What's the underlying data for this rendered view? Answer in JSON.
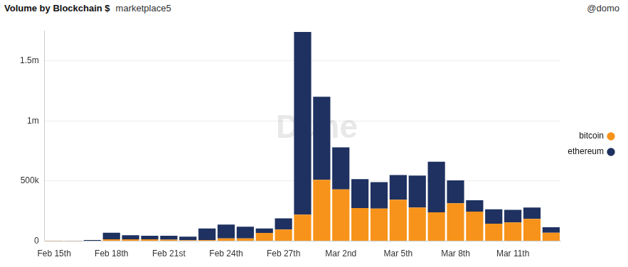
{
  "chart_data": {
    "type": "bar",
    "title": "Volume by Blockchain $",
    "subtitle": "marketplace5",
    "annotations": [
      "@domo",
      "Dune"
    ],
    "categories": [
      "Feb 15th",
      null,
      null,
      "Feb 18th",
      null,
      null,
      "Feb 21st",
      null,
      null,
      "Feb 24th",
      null,
      null,
      "Feb 27th",
      null,
      null,
      "Mar 2nd",
      null,
      null,
      "Mar 5th",
      null,
      null,
      "Mar 8th",
      null,
      null,
      "Mar 11th",
      null,
      null
    ],
    "series": [
      {
        "name": "bitcoin",
        "color": "#f7931a",
        "values": [
          1000,
          2000,
          3000,
          15000,
          15000,
          15000,
          12000,
          8000,
          10000,
          22000,
          22000,
          68000,
          97000,
          220000,
          510000,
          430000,
          275000,
          270000,
          345000,
          280000,
          240000,
          315000,
          245000,
          145000,
          155000,
          185000,
          70000
        ]
      },
      {
        "name": "ethereum",
        "color": "#1e3160",
        "values": [
          1000,
          1000,
          6000,
          55000,
          35000,
          30000,
          33000,
          30000,
          95000,
          116000,
          98000,
          37000,
          93000,
          1520000,
          690000,
          350000,
          240000,
          220000,
          205000,
          265000,
          420000,
          190000,
          95000,
          120000,
          105000,
          95000,
          45000
        ]
      }
    ],
    "ylim": [
      0,
      1750000
    ],
    "yticks": [
      0,
      {
        "value": 500000,
        "label": "500k"
      },
      {
        "value": 1000000,
        "label": "1m"
      },
      {
        "value": 1500000,
        "label": "1.5m"
      }
    ],
    "stacked": true,
    "grid": true,
    "legend": "right"
  }
}
